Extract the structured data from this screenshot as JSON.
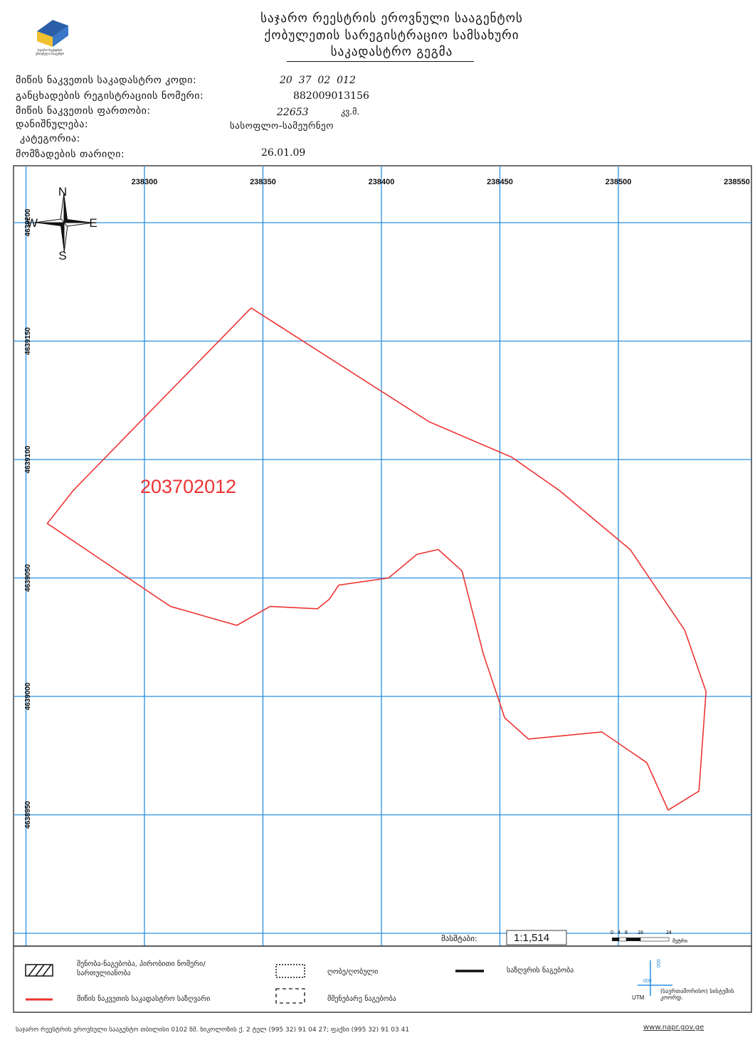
{
  "header": {
    "line1": "საჯარო რეესტრის ეროვნული სააგენტოს",
    "line2": "ქობულეთის სარეგისტრაციო სამსახური",
    "line3": "საკადასტრო გეგმა",
    "logo_text_1": "საჯარო რეესტრის",
    "logo_text_2": "ეროვნული სააგენტო",
    "logo_colors": [
      "#2a5fa8",
      "#f2c12e"
    ]
  },
  "info": {
    "cadastral_code_label": "მიწის ნაკვეთის საკადასტრო კოდი:",
    "cadastral_code_value": "20  37  02  012",
    "application_number_label": "განცხადების რეგისტრაციის ნომერი:",
    "application_number_value": "882009013156",
    "area_label": "მიწის ნაკვეთის ფართობი:",
    "area_value": "22653",
    "area_unit": "კვ.მ.",
    "purpose_label": "დანიშნულება:",
    "purpose_value": "სასოფლო-სამეურნეო",
    "category_label": "კატეგორია:",
    "date_label": "მომზადების თარიღი:",
    "date_value": "26.01.09"
  },
  "map": {
    "x_ticks": [
      "238300",
      "238350",
      "238400",
      "238450",
      "238500",
      "238550"
    ],
    "y_ticks": [
      "4639200",
      "4639150",
      "4639100",
      "4639050",
      "4639000",
      "4638950"
    ],
    "x_range": [
      238250,
      238550
    ],
    "y_range": [
      4638900,
      4639220
    ],
    "parcel_label": "203702012",
    "parcel_color": "#ee3333",
    "grid_color": "#2a8fe0",
    "compass": {
      "n": "N",
      "s": "S",
      "e": "E",
      "w": "W"
    },
    "parcel_polygon": [
      [
        238345,
        4639164
      ],
      [
        238420,
        4639116
      ],
      [
        238455,
        4639101
      ],
      [
        238475,
        4639087
      ],
      [
        238505,
        4639062
      ],
      [
        238528,
        4639028
      ],
      [
        238537,
        4639002
      ],
      [
        238534,
        4638960
      ],
      [
        238521,
        4638952
      ],
      [
        238512,
        4638972
      ],
      [
        238493,
        4638985
      ],
      [
        238462,
        4638982
      ],
      [
        238452,
        4638991
      ],
      [
        238443,
        4639018
      ],
      [
        238434,
        4639053
      ],
      [
        238424,
        4639062
      ],
      [
        238415,
        4639060
      ],
      [
        238403,
        4639050
      ],
      [
        238382,
        4639047
      ],
      [
        238378,
        4639041
      ],
      [
        238373,
        4639037
      ],
      [
        238353,
        4639038
      ],
      [
        238339,
        4639030
      ],
      [
        238311,
        4639038
      ],
      [
        238259,
        4639073
      ],
      [
        238270,
        4639087
      ],
      [
        238345,
        4639164
      ]
    ]
  },
  "scale": {
    "label": "მასშტაბი:",
    "value": "1:1,514",
    "bar_ticks": [
      "0",
      "4",
      "8",
      "16",
      "24"
    ],
    "bar_unit": "მეტრი"
  },
  "legend": {
    "item1": "შენობა-ნაგებობა, პირობითი ნომერი/სართულიანობა",
    "item2": "ღობე/ღობული",
    "item3": "საზღვრის ნაგებობა",
    "item4": "მიწის ნაკვეთის საკადასტრო საზღვარი",
    "item5": "მშენებარე ნაგებობა",
    "utm_label": "UTM",
    "utm_desc": "(საერთაშორისო) სისტემის კოორდ.",
    "utm_tick_x": "000",
    "utm_tick_y": "000"
  },
  "footer": {
    "address": "საჯარო რეესტრის ეროვნული სააგენტო თბილისი 0102 წმ. ნიკოლოზის ქ. 2 ტელ (995 32) 91 04 27; ფაქსი (995 32) 91 03 41",
    "website": "www.napr.gov.ge"
  }
}
